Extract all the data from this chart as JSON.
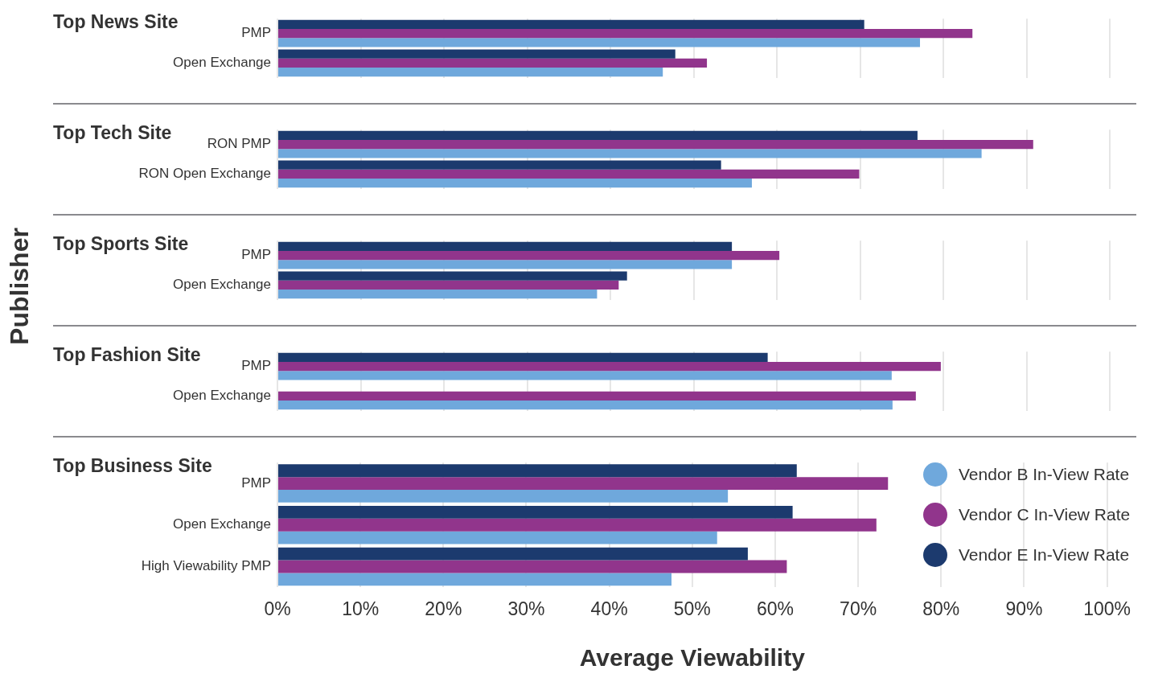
{
  "chart_data": [
    {
      "type": "bar",
      "orientation": "horizontal",
      "title": "Top News Site",
      "categories": [
        "PMP",
        "Open Exchange"
      ],
      "series": [
        {
          "color": "#1c3a6e",
          "values": [
            70.5,
            47.8
          ]
        },
        {
          "color": "#91358c",
          "values": [
            83.5,
            51.6
          ]
        },
        {
          "color": "#6fa8dc",
          "values": [
            77.2,
            46.3
          ]
        }
      ],
      "xlim": [
        0,
        100
      ],
      "xticks": [
        {
          "value": 0,
          "label": null
        },
        {
          "value": 10,
          "label": null
        },
        {
          "value": 20,
          "label": null
        },
        {
          "value": 30,
          "label": null
        },
        {
          "value": 40,
          "label": null
        },
        {
          "value": 50,
          "label": null
        },
        {
          "value": 60,
          "label": null
        },
        {
          "value": 70,
          "label": null
        },
        {
          "value": 80,
          "label": null
        },
        {
          "value": 90,
          "label": null
        },
        {
          "value": 100,
          "label": null
        }
      ],
      "tick_labels": "y",
      "grid": "x",
      "legend": false
    },
    {
      "type": "bar",
      "orientation": "horizontal",
      "title": "Top Tech Site",
      "categories": [
        "RON PMP",
        "RON Open Exchange"
      ],
      "series": [
        {
          "color": "#1c3a6e",
          "values": [
            76.9,
            53.3
          ]
        },
        {
          "color": "#91358c",
          "values": [
            90.8,
            69.9
          ]
        },
        {
          "color": "#6fa8dc",
          "values": [
            84.6,
            57.0
          ]
        }
      ],
      "xlim": [
        0,
        100
      ],
      "xticks": [
        {
          "value": 0,
          "label": null
        },
        {
          "value": 10,
          "label": null
        },
        {
          "value": 20,
          "label": null
        },
        {
          "value": 30,
          "label": null
        },
        {
          "value": 40,
          "label": null
        },
        {
          "value": 50,
          "label": null
        },
        {
          "value": 60,
          "label": null
        },
        {
          "value": 70,
          "label": null
        },
        {
          "value": 80,
          "label": null
        },
        {
          "value": 90,
          "label": null
        },
        {
          "value": 100,
          "label": null
        }
      ],
      "tick_labels": "y",
      "grid": "x",
      "legend": false
    },
    {
      "type": "bar",
      "orientation": "horizontal",
      "title": "Top Sports Site",
      "ylabel": "Publisher",
      "categories": [
        "PMP",
        "Open Exchange"
      ],
      "series": [
        {
          "color": "#1c3a6e",
          "values": [
            54.6,
            42.0
          ]
        },
        {
          "color": "#91358c",
          "values": [
            60.3,
            41.0
          ]
        },
        {
          "color": "#6fa8dc",
          "values": [
            54.6,
            38.4
          ]
        }
      ],
      "xlim": [
        0,
        100
      ],
      "xticks": [
        {
          "value": 0,
          "label": null
        },
        {
          "value": 10,
          "label": null
        },
        {
          "value": 20,
          "label": null
        },
        {
          "value": 30,
          "label": null
        },
        {
          "value": 40,
          "label": null
        },
        {
          "value": 50,
          "label": null
        },
        {
          "value": 60,
          "label": null
        },
        {
          "value": 70,
          "label": null
        },
        {
          "value": 80,
          "label": null
        },
        {
          "value": 90,
          "label": null
        },
        {
          "value": 100,
          "label": null
        }
      ],
      "tick_labels": "y",
      "grid": "x",
      "legend": false
    },
    {
      "type": "bar",
      "orientation": "horizontal",
      "title": "Top Fashion Site",
      "categories": [
        "PMP",
        "Open Exchange"
      ],
      "series": [
        {
          "color": "#1c3a6e",
          "values": [
            58.9,
            null
          ]
        },
        {
          "color": "#91358c",
          "values": [
            79.7,
            76.7
          ]
        },
        {
          "color": "#6fa8dc",
          "values": [
            73.8,
            73.9
          ]
        }
      ],
      "xlim": [
        0,
        100
      ],
      "xticks": [
        {
          "value": 0,
          "label": null
        },
        {
          "value": 10,
          "label": null
        },
        {
          "value": 20,
          "label": null
        },
        {
          "value": 30,
          "label": null
        },
        {
          "value": 40,
          "label": null
        },
        {
          "value": 50,
          "label": null
        },
        {
          "value": 60,
          "label": null
        },
        {
          "value": 70,
          "label": null
        },
        {
          "value": 80,
          "label": null
        },
        {
          "value": 90,
          "label": null
        },
        {
          "value": 100,
          "label": null
        }
      ],
      "tick_labels": "y",
      "grid": "x",
      "legend": false
    },
    {
      "type": "bar",
      "orientation": "horizontal",
      "title": "Top Business Site",
      "xlabel": "Average Viewability",
      "categories": [
        "PMP",
        "Open Exchange",
        "High Viewability PMP"
      ],
      "series": [
        {
          "name": "Vendor E In-View Rate",
          "color": "#1c3a6e",
          "values": [
            62.6,
            62.1,
            56.7
          ]
        },
        {
          "name": "Vendor C In-View Rate",
          "color": "#91358c",
          "values": [
            73.6,
            72.2,
            61.4
          ]
        },
        {
          "name": "Vendor B In-View Rate",
          "color": "#6fa8dc",
          "values": [
            54.3,
            53.0,
            47.5
          ]
        }
      ],
      "xlim": [
        0,
        100
      ],
      "xticks": [
        {
          "value": 0,
          "label": "0%"
        },
        {
          "value": 10,
          "label": "10%"
        },
        {
          "value": 20,
          "label": "20%"
        },
        {
          "value": 30,
          "label": "30%"
        },
        {
          "value": 40,
          "label": "40%"
        },
        {
          "value": 50,
          "label": "50%"
        },
        {
          "value": 60,
          "label": "60%"
        },
        {
          "value": 70,
          "label": "70%"
        },
        {
          "value": 80,
          "label": "80%"
        },
        {
          "value": 90,
          "label": "90%"
        },
        {
          "value": 100,
          "label": "100%"
        }
      ],
      "grid": "x",
      "legend": "right"
    }
  ]
}
